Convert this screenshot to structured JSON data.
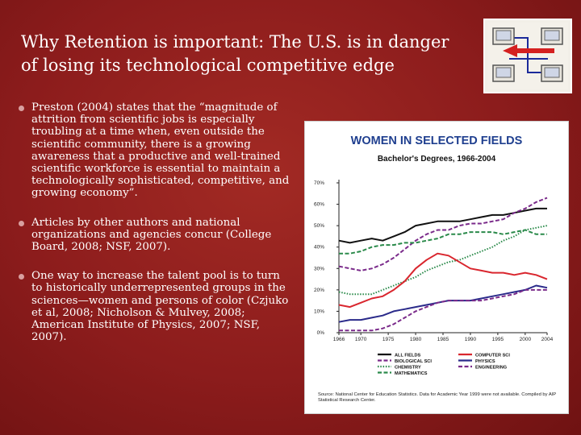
{
  "slide": {
    "title_lines": [
      "Why Retention is important:   The U.S. is in danger",
      "of losing its technological competitive edge"
    ],
    "bullets": [
      "Preston (2004) states that the “magnitude of attrition from scientific jobs is especially troubling at a time when, even outside the scientific community, there is a growing awareness that a productive and well-trained scientific workforce is essential to maintain a technologically sophisticated, competitive, and growing economy”.",
      "Articles by other authors and national organizations and agencies concur (College Board, 2008; NSF, 2007).",
      "One way to increase the talent pool is to turn to historically underrepresented groups in the sciences—women and persons of color (Czjuko et al, 2008; Nicholson & Mulvey, 2008; American Institute of Physics, 2007; NSF, 2007)."
    ],
    "logo_icon": "computer-network-arrows-icon"
  },
  "chart_data": {
    "type": "line",
    "title": "WOMEN IN SELECTED FIELDS",
    "subtitle": "Bachelor's Degrees, 1966-2004",
    "x_ticks": [
      "1966",
      "1970",
      "1975",
      "1980",
      "1985",
      "1990",
      "1995",
      "2000",
      "2004"
    ],
    "y_ticks": [
      "0%",
      "10%",
      "20%",
      "30%",
      "40%",
      "50%",
      "60%",
      "70%"
    ],
    "xlim": [
      1966,
      2004
    ],
    "ylim": [
      0,
      70
    ],
    "grid": false,
    "legend_position": "bottom",
    "source": "Source: National Center for Education Statistics.  Data for Academic Year 1999 were not available.  Compiled by AIP Statistical Research Center.",
    "title_color": "#1f3f8f",
    "series": [
      {
        "name": "ALL FIELDS",
        "color": "#111111",
        "style": "solid",
        "x": [
          1966,
          1968,
          1970,
          1972,
          1974,
          1976,
          1978,
          1980,
          1982,
          1984,
          1986,
          1988,
          1990,
          1992,
          1994,
          1996,
          1998,
          2000,
          2002,
          2004
        ],
        "y": [
          43,
          42,
          43,
          44,
          43,
          45,
          47,
          50,
          51,
          52,
          52,
          52,
          53,
          54,
          55,
          55,
          56,
          57,
          58,
          58
        ]
      },
      {
        "name": "BIOLOGICAL SCI",
        "color": "#7a2a8a",
        "style": "dashed",
        "x": [
          1966,
          1968,
          1970,
          1972,
          1974,
          1976,
          1978,
          1980,
          1982,
          1984,
          1986,
          1988,
          1990,
          1992,
          1994,
          1996,
          1998,
          2000,
          2002,
          2004
        ],
        "y": [
          31,
          30,
          29,
          30,
          32,
          35,
          39,
          43,
          46,
          48,
          48,
          50,
          51,
          51,
          52,
          53,
          56,
          58,
          61,
          63
        ]
      },
      {
        "name": "CHEMISTRY",
        "color": "#2a8a4a",
        "style": "dotted",
        "x": [
          1966,
          1968,
          1970,
          1972,
          1974,
          1976,
          1978,
          1980,
          1982,
          1984,
          1986,
          1988,
          1990,
          1992,
          1994,
          1996,
          1998,
          2000,
          2002,
          2004
        ],
        "y": [
          19,
          18,
          18,
          18,
          20,
          22,
          24,
          26,
          29,
          31,
          33,
          34,
          36,
          38,
          40,
          43,
          45,
          48,
          49,
          50
        ]
      },
      {
        "name": "MATHEMATICS",
        "color": "#2a8a4a",
        "style": "dashed",
        "x": [
          1966,
          1968,
          1970,
          1972,
          1974,
          1976,
          1978,
          1980,
          1982,
          1984,
          1986,
          1988,
          1990,
          1992,
          1994,
          1996,
          1998,
          2000,
          2002,
          2004
        ],
        "y": [
          37,
          37,
          38,
          40,
          41,
          41,
          42,
          42,
          43,
          44,
          46,
          46,
          47,
          47,
          47,
          46,
          47,
          48,
          46,
          46
        ]
      },
      {
        "name": "COMPUTER SCI",
        "color": "#d9262e",
        "style": "solid",
        "x": [
          1966,
          1968,
          1970,
          1972,
          1974,
          1976,
          1978,
          1980,
          1982,
          1984,
          1986,
          1988,
          1990,
          1992,
          1994,
          1996,
          1998,
          2000,
          2002,
          2004
        ],
        "y": [
          13,
          12,
          14,
          16,
          17,
          20,
          24,
          30,
          34,
          37,
          36,
          33,
          30,
          29,
          28,
          28,
          27,
          28,
          27,
          25
        ]
      },
      {
        "name": "PHYSICS",
        "color": "#2a2a8a",
        "style": "solid",
        "x": [
          1966,
          1968,
          1970,
          1972,
          1974,
          1976,
          1978,
          1980,
          1982,
          1984,
          1986,
          1988,
          1990,
          1992,
          1994,
          1996,
          1998,
          2000,
          2002,
          2004
        ],
        "y": [
          5,
          6,
          6,
          7,
          8,
          10,
          11,
          12,
          13,
          14,
          15,
          15,
          15,
          16,
          17,
          18,
          19,
          20,
          22,
          21
        ]
      },
      {
        "name": "ENGINEERING",
        "color": "#7a2a8a",
        "style": "dashed",
        "x": [
          1966,
          1968,
          1970,
          1972,
          1974,
          1976,
          1978,
          1980,
          1982,
          1984,
          1986,
          1988,
          1990,
          1992,
          1994,
          1996,
          1998,
          2000,
          2002,
          2004
        ],
        "y": [
          1,
          1,
          1,
          1,
          2,
          4,
          7,
          10,
          12,
          14,
          15,
          15,
          15,
          15,
          16,
          17,
          18,
          20,
          20,
          20
        ]
      }
    ]
  }
}
